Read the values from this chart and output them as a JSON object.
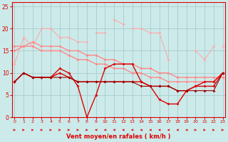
{
  "x": [
    0,
    1,
    2,
    3,
    4,
    5,
    6,
    7,
    8,
    9,
    10,
    11,
    12,
    13,
    14,
    15,
    16,
    17,
    18,
    19,
    20,
    21,
    22,
    23
  ],
  "series": [
    {
      "color": "#FFAAAA",
      "lw": 0.8,
      "marker": "D",
      "ms": 2.0,
      "values": [
        12,
        18,
        16,
        20,
        20,
        18,
        18,
        17,
        17,
        null,
        null,
        22,
        21,
        null,
        null,
        null,
        null,
        null,
        null,
        null,
        15,
        13,
        16,
        null
      ]
    },
    {
      "color": "#FFAAAA",
      "lw": 0.8,
      "marker": "D",
      "ms": 2.0,
      "values": [
        null,
        null,
        null,
        null,
        null,
        null,
        null,
        null,
        null,
        19,
        19,
        null,
        null,
        20,
        20,
        19,
        19,
        13,
        null,
        null,
        null,
        null,
        null,
        16
      ]
    },
    {
      "color": "#FF8888",
      "lw": 1.0,
      "marker": "D",
      "ms": 2.0,
      "values": [
        16,
        16,
        17,
        16,
        16,
        16,
        15,
        15,
        14,
        14,
        13,
        13,
        12,
        12,
        11,
        11,
        10,
        10,
        9,
        9,
        9,
        9,
        9,
        9
      ]
    },
    {
      "color": "#FF8888",
      "lw": 1.0,
      "marker": "D",
      "ms": 2.0,
      "values": [
        15,
        16,
        16,
        15,
        15,
        15,
        14,
        13,
        13,
        12,
        12,
        11,
        11,
        10,
        10,
        9,
        9,
        8,
        8,
        8,
        8,
        8,
        8,
        10
      ]
    },
    {
      "color": "#DD0000",
      "lw": 1.0,
      "marker": "D",
      "ms": 2.0,
      "values": [
        8,
        10,
        9,
        9,
        9,
        11,
        10,
        7,
        0,
        5,
        11,
        12,
        12,
        12,
        8,
        7,
        4,
        3,
        3,
        6,
        7,
        8,
        8,
        10
      ]
    },
    {
      "color": "#DD0000",
      "lw": 1.0,
      "marker": "D",
      "ms": 2.0,
      "values": [
        8,
        10,
        9,
        9,
        9,
        10,
        9,
        8,
        8,
        8,
        8,
        8,
        8,
        8,
        8,
        7,
        7,
        7,
        6,
        6,
        7,
        7,
        7,
        10
      ]
    },
    {
      "color": "#990000",
      "lw": 0.8,
      "marker": "D",
      "ms": 2.0,
      "values": [
        8,
        10,
        9,
        9,
        9,
        9,
        9,
        8,
        8,
        8,
        8,
        8,
        8,
        8,
        7,
        7,
        7,
        7,
        6,
        6,
        6,
        6,
        6,
        10
      ]
    }
  ],
  "xlim": [
    -0.3,
    23.3
  ],
  "ylim": [
    0,
    26
  ],
  "yticks": [
    0,
    5,
    10,
    15,
    20,
    25
  ],
  "xticks": [
    0,
    1,
    2,
    3,
    4,
    5,
    6,
    7,
    8,
    9,
    10,
    11,
    12,
    13,
    14,
    15,
    16,
    17,
    18,
    19,
    20,
    21,
    22,
    23
  ],
  "xlabel": "Vent moyen/en rafales ( km/h )",
  "bg_color": "#CCEAEA",
  "grid_color": "#AACCCC",
  "tick_color": "#DD0000",
  "label_color": "#DD0000",
  "arrow_directions": [
    1,
    1,
    1,
    1,
    1,
    1,
    1,
    1,
    1,
    -1,
    -1,
    -1,
    -1,
    -1,
    -1,
    -1,
    -1,
    -1,
    -1,
    -1,
    1,
    1,
    1,
    1
  ]
}
